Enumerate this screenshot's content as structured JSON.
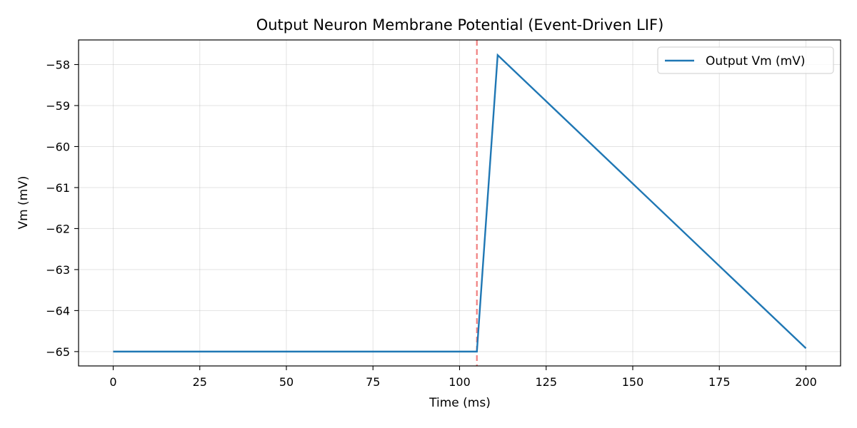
{
  "chart_data": {
    "type": "line",
    "title": "Output Neuron Membrane Potential (Event-Driven LIF)",
    "xlabel": "Time (ms)",
    "ylabel": "Vm (mV)",
    "xlim": [
      -10,
      210
    ],
    "ylim": [
      -65.35,
      -57.4
    ],
    "xticks": [
      0,
      25,
      50,
      75,
      100,
      125,
      150,
      175,
      200
    ],
    "yticks": [
      -58,
      -59,
      -60,
      -61,
      -62,
      -63,
      -64,
      -65
    ],
    "xtick_labels": [
      "0",
      "25",
      "50",
      "75",
      "100",
      "125",
      "150",
      "175",
      "200"
    ],
    "ytick_labels": [
      "−58",
      "−59",
      "−60",
      "−61",
      "−62",
      "−63",
      "−64",
      "−65"
    ],
    "grid": true,
    "legend": "top-right",
    "series": [
      {
        "name": "Output Vm (mV)",
        "color": "#1f77b4",
        "x": [
          0,
          105,
          111,
          200
        ],
        "y": [
          -65.0,
          -65.0,
          -57.77,
          -64.92
        ]
      }
    ],
    "annotations": [
      {
        "type": "vline",
        "x": 105,
        "color": "#f08080",
        "style": "dashed"
      }
    ]
  }
}
